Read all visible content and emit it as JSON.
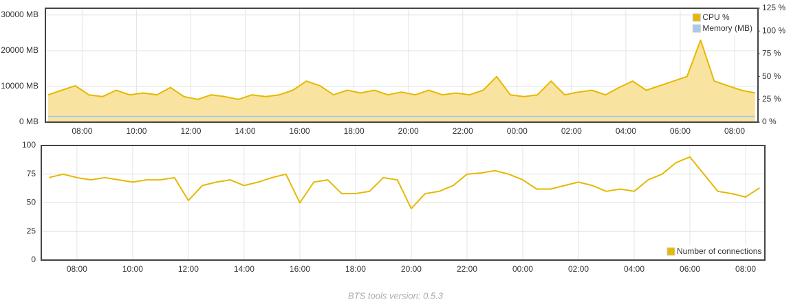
{
  "chart_data": [
    {
      "type": "line",
      "x": [
        6.75,
        7.25,
        7.75,
        8.25,
        8.75,
        9.25,
        9.75,
        10.25,
        10.75,
        11.25,
        11.75,
        12.25,
        12.75,
        13.25,
        13.75,
        14.25,
        14.75,
        15.25,
        15.75,
        16.25,
        16.75,
        17.25,
        17.75,
        18.25,
        18.75,
        19.25,
        19.75,
        20.25,
        20.75,
        21.25,
        21.75,
        22.25,
        22.75,
        23.25,
        23.75,
        24.25,
        24.75,
        25.25,
        25.75,
        26.25,
        26.75,
        27.25,
        27.75,
        28.25,
        28.75,
        29.25,
        29.75,
        30.25,
        30.75,
        31.25,
        31.75,
        32.25,
        32.75
      ],
      "xlim": [
        6.65,
        32.86
      ],
      "xticks": [
        {
          "value": 8,
          "label": "08:00"
        },
        {
          "value": 10,
          "label": "10:00"
        },
        {
          "value": 12,
          "label": "12:00"
        },
        {
          "value": 14,
          "label": "14:00"
        },
        {
          "value": 16,
          "label": "16:00"
        },
        {
          "value": 18,
          "label": "18:00"
        },
        {
          "value": 20,
          "label": "20:00"
        },
        {
          "value": 22,
          "label": "22:00"
        },
        {
          "value": 24,
          "label": "00:00"
        },
        {
          "value": 26,
          "label": "02:00"
        },
        {
          "value": 28,
          "label": "04:00"
        },
        {
          "value": 30,
          "label": "06:00"
        },
        {
          "value": 32,
          "label": "08:00"
        }
      ],
      "ylim": [
        0,
        31900
      ],
      "yticks": [
        {
          "value": 0,
          "label": "0 MB"
        },
        {
          "value": 10000,
          "label": "10000 MB"
        },
        {
          "value": 20000,
          "label": "20000 MB"
        },
        {
          "value": 30000,
          "label": "30000 MB"
        }
      ],
      "y2lim": [
        0,
        125
      ],
      "y2ticks": [
        {
          "value": 0,
          "label": "0 %"
        },
        {
          "value": 25,
          "label": "25 %"
        },
        {
          "value": 50,
          "label": "50 %"
        },
        {
          "value": 75,
          "label": "75 %"
        },
        {
          "value": 100,
          "label": "100 %"
        },
        {
          "value": 125,
          "label": "125 %"
        }
      ],
      "grid": true,
      "legend": "top-right",
      "series": [
        {
          "name": "CPU %",
          "color": "#e6b800",
          "fill": "#f8e4a0",
          "axis": "y2",
          "values": [
            30,
            35,
            40,
            30,
            28,
            35,
            30,
            32,
            30,
            38,
            28,
            25,
            30,
            28,
            25,
            30,
            28,
            30,
            35,
            45,
            40,
            30,
            35,
            32,
            35,
            30,
            33,
            30,
            35,
            30,
            32,
            30,
            35,
            50,
            30,
            28,
            30,
            45,
            30,
            33,
            35,
            30,
            38,
            45,
            35,
            40,
            45,
            50,
            90,
            45,
            40,
            35,
            32
          ]
        },
        {
          "name": "Memory (MB)",
          "color": "#a9c8ea",
          "values": [
            1600,
            1600,
            1600,
            1600,
            1600,
            1600,
            1600,
            1600,
            1600,
            1600,
            1600,
            1600,
            1600,
            1600,
            1600,
            1600,
            1600,
            1600,
            1600,
            1600,
            1600,
            1600,
            1600,
            1600,
            1600,
            1600,
            1600,
            1600,
            1600,
            1600,
            1600,
            1600,
            1600,
            1600,
            1600,
            1600,
            1600,
            1600,
            1600,
            1600,
            1600,
            1600,
            1600,
            1600,
            1600,
            1600,
            1600,
            1600,
            1600,
            1600,
            1600,
            1600,
            1600
          ]
        }
      ]
    },
    {
      "type": "line",
      "x": [
        7,
        7.5,
        8,
        8.5,
        9,
        9.5,
        10,
        10.5,
        11,
        11.5,
        12,
        12.5,
        13,
        13.5,
        14,
        14.5,
        15,
        15.5,
        16,
        16.5,
        17,
        17.5,
        18,
        18.5,
        19,
        19.5,
        20,
        20.5,
        21,
        21.5,
        22,
        22.5,
        23,
        23.5,
        24,
        24.5,
        25,
        25.5,
        26,
        26.5,
        27,
        27.5,
        28,
        28.5,
        29,
        29.5,
        30,
        30.5,
        31,
        31.5,
        32,
        32.5
      ],
      "xlim": [
        6.72,
        32.69
      ],
      "xticks": [
        {
          "value": 8,
          "label": "08:00"
        },
        {
          "value": 10,
          "label": "10:00"
        },
        {
          "value": 12,
          "label": "12:00"
        },
        {
          "value": 14,
          "label": "14:00"
        },
        {
          "value": 16,
          "label": "16:00"
        },
        {
          "value": 18,
          "label": "18:00"
        },
        {
          "value": 20,
          "label": "20:00"
        },
        {
          "value": 22,
          "label": "22:00"
        },
        {
          "value": 24,
          "label": "00:00"
        },
        {
          "value": 26,
          "label": "02:00"
        },
        {
          "value": 28,
          "label": "04:00"
        },
        {
          "value": 30,
          "label": "06:00"
        },
        {
          "value": 32,
          "label": "08:00"
        }
      ],
      "ylim": [
        0,
        100
      ],
      "yticks": [
        0,
        25,
        50,
        75,
        100
      ],
      "grid": true,
      "legend": "bottom-right",
      "series": [
        {
          "name": "Number of connections",
          "color": "#e6b800",
          "values": [
            72,
            75,
            72,
            70,
            72,
            70,
            68,
            70,
            70,
            72,
            52,
            65,
            68,
            70,
            65,
            68,
            72,
            75,
            50,
            68,
            70,
            58,
            58,
            60,
            72,
            70,
            45,
            58,
            60,
            65,
            75,
            76,
            78,
            75,
            70,
            62,
            62,
            65,
            68,
            65,
            60,
            62,
            60,
            70,
            75,
            85,
            90,
            75,
            60,
            58,
            55,
            63
          ]
        }
      ]
    }
  ],
  "footer": "BTS tools version: 0.5.3"
}
